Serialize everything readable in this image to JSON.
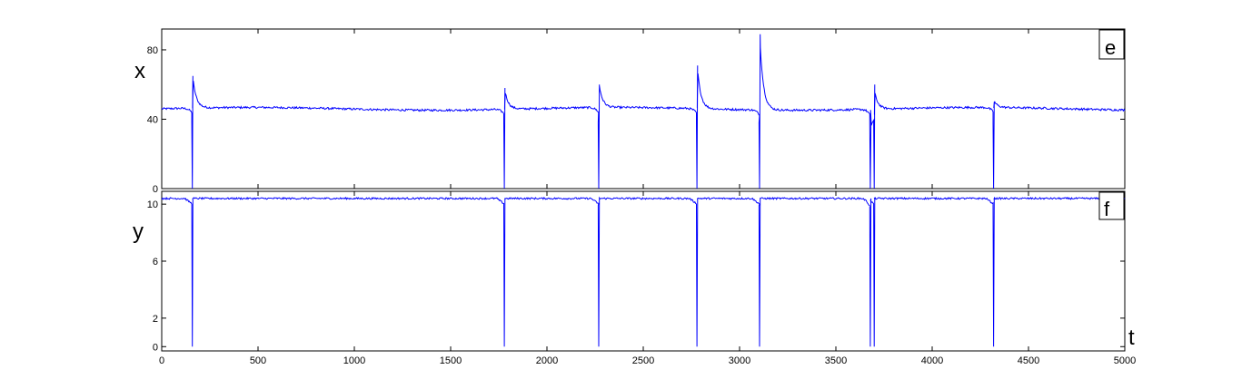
{
  "chart_data": [
    {
      "type": "line",
      "panel_tag": "e",
      "ylabel": "x",
      "xlim": [
        0,
        5000
      ],
      "ylim": [
        0,
        92
      ],
      "yticks": [
        0,
        40,
        80
      ],
      "baseline": 46,
      "series_color": "#0000ff",
      "spikes": [
        {
          "t": 160,
          "min": 0,
          "max": 65
        },
        {
          "t": 1780,
          "min": 0,
          "max": 58
        },
        {
          "t": 2270,
          "min": 0,
          "max": 60
        },
        {
          "t": 2780,
          "min": 0,
          "max": 71
        },
        {
          "t": 3105,
          "min": 0,
          "max": 89
        },
        {
          "t": 3680,
          "min": 0,
          "max": 36
        },
        {
          "t": 3700,
          "min": 0,
          "max": 60
        },
        {
          "t": 4320,
          "min": 0,
          "max": 50
        }
      ]
    },
    {
      "type": "line",
      "panel_tag": "f",
      "ylabel": "y",
      "xlabel": "t",
      "xlim": [
        0,
        5000
      ],
      "xticks": [
        0,
        500,
        1000,
        1500,
        2000,
        2500,
        3000,
        3500,
        4000,
        4500,
        5000
      ],
      "ylim": [
        -0.3,
        10.9
      ],
      "yticks": [
        0,
        2,
        6,
        10
      ],
      "baseline": 10.4,
      "series_color": "#0000ff",
      "spikes": [
        {
          "t": 160,
          "min": 0
        },
        {
          "t": 1780,
          "min": 0
        },
        {
          "t": 2270,
          "min": 0
        },
        {
          "t": 2780,
          "min": 0
        },
        {
          "t": 3105,
          "min": 0
        },
        {
          "t": 3680,
          "min": 0
        },
        {
          "t": 3700,
          "min": 0
        },
        {
          "t": 4320,
          "min": 0
        }
      ]
    }
  ]
}
